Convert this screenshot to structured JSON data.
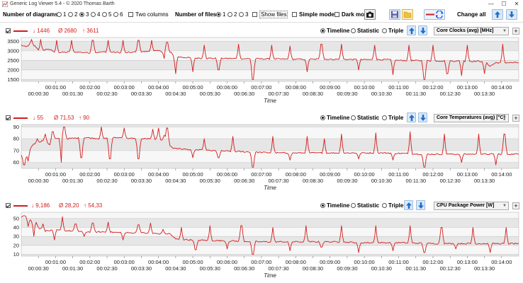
{
  "window": {
    "title": "Generic Log Viewer 5.4 - © 2020 Thomas Barth",
    "minimize": "—",
    "maximize": "☐",
    "close": "✕"
  },
  "toolbar": {
    "diagrams_label": "Number of diagrams",
    "diagram_options": [
      "1",
      "2",
      "3",
      "4",
      "5",
      "6"
    ],
    "diagrams_selected": "3",
    "two_columns": "Two columns",
    "files_label": "Number of files",
    "file_options": [
      "1",
      "2",
      "3"
    ],
    "files_selected": "1",
    "show_files": "Show files",
    "simple_mode": "Simple mode",
    "dark_mode": "Dark mode",
    "change_all": "Change all",
    "accent": "#d41c1c"
  },
  "panels": [
    {
      "min": "↓ 1446",
      "avg": "Ø 2680",
      "max": "↑ 3611",
      "mode_timeline": "Timeline",
      "mode_statistic": "Statistic",
      "mode_triple": "Triple",
      "mode_selected": "Timeline",
      "sensor": "Core Clocks (avg) [MHz]",
      "plus": "+",
      "chart_data": {
        "type": "line",
        "ylim": [
          1400,
          3700
        ],
        "yticks": [
          1500,
          2000,
          2500,
          3000,
          3500
        ],
        "xlim": [
          0,
          870
        ],
        "xlabel": "Time",
        "series": [
          {
            "name": "Core Clocks (avg) [MHz]",
            "color": "#d41c1c"
          }
        ],
        "base": [
          [
            0,
            3300
          ],
          [
            8,
            3200
          ],
          [
            16,
            3350
          ],
          [
            24,
            3250
          ],
          [
            32,
            3000
          ],
          [
            40,
            3050
          ],
          [
            48,
            3100
          ],
          [
            60,
            2900
          ],
          [
            90,
            2950
          ],
          [
            120,
            2900
          ],
          [
            150,
            2950
          ],
          [
            180,
            2900
          ],
          [
            210,
            2950
          ],
          [
            240,
            3000
          ],
          [
            262,
            2900
          ],
          [
            268,
            2700
          ],
          [
            300,
            2620
          ],
          [
            360,
            2600
          ],
          [
            420,
            2580
          ],
          [
            480,
            2560
          ],
          [
            540,
            2560
          ],
          [
            600,
            2540
          ],
          [
            640,
            2540
          ],
          [
            660,
            2500
          ],
          [
            720,
            2480
          ],
          [
            780,
            2460
          ],
          [
            810,
            2450
          ],
          [
            820,
            2200
          ],
          [
            830,
            2380
          ],
          [
            870,
            2380
          ]
        ],
        "spikes": [
          [
            18,
            3600
          ],
          [
            34,
            3600
          ],
          [
            62,
            3550
          ],
          [
            88,
            3550
          ],
          [
            125,
            3550
          ],
          [
            152,
            3550
          ],
          [
            178,
            3550
          ],
          [
            205,
            3550
          ],
          [
            228,
            3550
          ],
          [
            250,
            2600
          ],
          [
            255,
            3450
          ],
          [
            270,
            1800
          ],
          [
            300,
            1900
          ],
          [
            320,
            3300
          ],
          [
            345,
            2000
          ],
          [
            380,
            3350
          ],
          [
            405,
            1500
          ],
          [
            438,
            3300
          ],
          [
            470,
            3250
          ],
          [
            500,
            1900
          ],
          [
            525,
            3350
          ],
          [
            560,
            3350
          ],
          [
            590,
            2000
          ],
          [
            618,
            3300
          ],
          [
            650,
            1750
          ],
          [
            678,
            3300
          ],
          [
            705,
            1500
          ],
          [
            720,
            3300
          ],
          [
            745,
            1800
          ],
          [
            770,
            1700
          ],
          [
            780,
            3300
          ],
          [
            810,
            1800
          ],
          [
            842,
            3350
          ]
        ]
      }
    },
    {
      "min": "↓ 55",
      "avg": "Ø 71,53",
      "max": "↑ 90",
      "mode_timeline": "Timeline",
      "mode_statistic": "Statistic",
      "mode_triple": "Triple",
      "mode_selected": "Timeline",
      "sensor": "Core Temperatures (avg) [°C]",
      "plus": "+",
      "chart_data": {
        "type": "line",
        "ylim": [
          55,
          92
        ],
        "yticks": [
          60,
          70,
          80,
          90
        ],
        "xlim": [
          0,
          870
        ],
        "xlabel": "Time",
        "series": [
          {
            "name": "Core Temperatures (avg) [°C]",
            "color": "#d41c1c"
          }
        ],
        "base": [
          [
            0,
            66
          ],
          [
            10,
            67
          ],
          [
            20,
            75
          ],
          [
            30,
            77
          ],
          [
            40,
            79
          ],
          [
            50,
            75
          ],
          [
            60,
            80
          ],
          [
            80,
            80
          ],
          [
            110,
            81
          ],
          [
            140,
            80
          ],
          [
            170,
            81
          ],
          [
            200,
            80
          ],
          [
            230,
            80
          ],
          [
            250,
            79
          ],
          [
            265,
            72
          ],
          [
            290,
            71
          ],
          [
            330,
            70
          ],
          [
            390,
            69
          ],
          [
            450,
            68
          ],
          [
            520,
            68
          ],
          [
            580,
            68
          ],
          [
            640,
            68
          ],
          [
            700,
            67
          ],
          [
            760,
            67
          ],
          [
            820,
            67
          ],
          [
            870,
            67
          ]
        ],
        "spikes": [
          [
            5,
            58
          ],
          [
            12,
            61
          ],
          [
            28,
            80
          ],
          [
            42,
            84
          ],
          [
            55,
            86
          ],
          [
            70,
            60
          ],
          [
            75,
            90
          ],
          [
            105,
            64
          ],
          [
            140,
            90
          ],
          [
            155,
            63
          ],
          [
            180,
            89
          ],
          [
            205,
            63
          ],
          [
            230,
            88
          ],
          [
            240,
            89
          ],
          [
            250,
            83
          ],
          [
            255,
            89
          ],
          [
            270,
            72
          ],
          [
            300,
            64
          ],
          [
            320,
            80
          ],
          [
            345,
            64
          ],
          [
            370,
            82
          ],
          [
            405,
            56
          ],
          [
            440,
            82
          ],
          [
            470,
            62
          ],
          [
            500,
            82
          ],
          [
            530,
            80
          ],
          [
            560,
            84
          ],
          [
            590,
            63
          ],
          [
            620,
            85
          ],
          [
            650,
            62
          ],
          [
            680,
            86
          ],
          [
            705,
            56
          ],
          [
            740,
            84
          ],
          [
            770,
            60
          ],
          [
            800,
            84
          ],
          [
            830,
            58
          ],
          [
            845,
            84
          ]
        ]
      }
    },
    {
      "min": "↓ 9,186",
      "avg": "Ø 28,20",
      "max": "↑ 54,33",
      "mode_timeline": "Timeline",
      "mode_statistic": "Statistic",
      "mode_triple": "Triple",
      "mode_selected": "Timeline",
      "sensor": "CPU Package Power [W]",
      "plus": "+",
      "chart_data": {
        "type": "line",
        "ylim": [
          8,
          57
        ],
        "yticks": [
          10,
          20,
          30,
          40,
          50
        ],
        "xlim": [
          0,
          870
        ],
        "xlabel": "Time",
        "series": [
          {
            "name": "CPU Package Power [W]",
            "color": "#d41c1c"
          }
        ],
        "base": [
          [
            0,
            52
          ],
          [
            5,
            54
          ],
          [
            10,
            52
          ],
          [
            18,
            47
          ],
          [
            25,
            48
          ],
          [
            30,
            40
          ],
          [
            40,
            36
          ],
          [
            60,
            37
          ],
          [
            90,
            36
          ],
          [
            120,
            35
          ],
          [
            150,
            35
          ],
          [
            180,
            34
          ],
          [
            210,
            34
          ],
          [
            240,
            33
          ],
          [
            260,
            33
          ],
          [
            270,
            27
          ],
          [
            300,
            26
          ],
          [
            360,
            25
          ],
          [
            420,
            24
          ],
          [
            480,
            24
          ],
          [
            540,
            24
          ],
          [
            600,
            23
          ],
          [
            660,
            23
          ],
          [
            720,
            22
          ],
          [
            780,
            22
          ],
          [
            840,
            22
          ],
          [
            870,
            22
          ]
        ],
        "spikes": [
          [
            12,
            41
          ],
          [
            22,
            30
          ],
          [
            38,
            44
          ],
          [
            58,
            26
          ],
          [
            72,
            52
          ],
          [
            95,
            44
          ],
          [
            110,
            30
          ],
          [
            125,
            45
          ],
          [
            152,
            46
          ],
          [
            178,
            26
          ],
          [
            205,
            43
          ],
          [
            226,
            45
          ],
          [
            248,
            38
          ],
          [
            280,
            40
          ],
          [
            305,
            15
          ],
          [
            330,
            42
          ],
          [
            360,
            16
          ],
          [
            385,
            42
          ],
          [
            405,
            10
          ],
          [
            440,
            40
          ],
          [
            470,
            14
          ],
          [
            498,
            42
          ],
          [
            525,
            18
          ],
          [
            560,
            42
          ],
          [
            590,
            12
          ],
          [
            620,
            42
          ],
          [
            650,
            14
          ],
          [
            680,
            42
          ],
          [
            705,
            12
          ],
          [
            735,
            40
          ],
          [
            760,
            16
          ],
          [
            790,
            40
          ],
          [
            820,
            12
          ],
          [
            848,
            40
          ]
        ]
      }
    }
  ]
}
